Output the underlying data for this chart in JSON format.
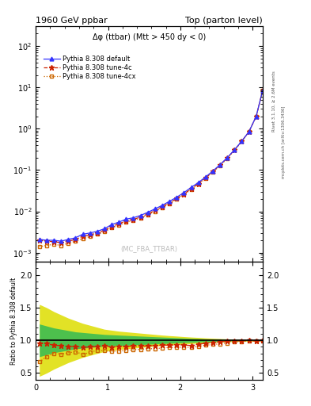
{
  "title_left": "1960 GeV ppbar",
  "title_right": "Top (parton level)",
  "annotation": "Δφ (ttbar) (Mtt > 450 dy < 0)",
  "watermark": "(MC_FBA_TTBAR)",
  "right_label_top": "Rivet 3.1.10, ≥ 2.6M events",
  "right_label_bot": "mcplots.cern.ch [arXiv:1306.3436]",
  "ylabel_ratio": "Ratio to Pythia 8.308 default",
  "xlim": [
    0,
    3.14159
  ],
  "ylim_main": [
    0.0006,
    300
  ],
  "ylim_ratio": [
    0.4,
    2.2
  ],
  "yticks_ratio": [
    0.5,
    1.0,
    1.5,
    2.0
  ],
  "xticks": [
    0,
    1,
    2,
    3
  ],
  "legend_labels": [
    "Pythia 8.308 default",
    "Pythia 8.308 tune-4c",
    "Pythia 8.308 tune-4cx"
  ],
  "x": [
    0.05,
    0.15,
    0.25,
    0.35,
    0.45,
    0.55,
    0.65,
    0.75,
    0.85,
    0.95,
    1.05,
    1.15,
    1.25,
    1.35,
    1.45,
    1.55,
    1.65,
    1.75,
    1.85,
    1.95,
    2.05,
    2.15,
    2.25,
    2.35,
    2.45,
    2.55,
    2.65,
    2.75,
    2.85,
    2.95,
    3.05,
    3.14
  ],
  "y_default": [
    0.0021,
    0.002,
    0.002,
    0.0019,
    0.0021,
    0.0023,
    0.0028,
    0.003,
    0.0033,
    0.0038,
    0.0048,
    0.0055,
    0.0065,
    0.007,
    0.008,
    0.0095,
    0.0115,
    0.014,
    0.0175,
    0.022,
    0.0285,
    0.038,
    0.05,
    0.068,
    0.095,
    0.135,
    0.2,
    0.31,
    0.5,
    0.85,
    2.0,
    8.5
  ],
  "y_tune4c": [
    0.002,
    0.0019,
    0.00185,
    0.00175,
    0.0019,
    0.0021,
    0.0025,
    0.0027,
    0.003,
    0.0035,
    0.0043,
    0.005,
    0.0059,
    0.0064,
    0.0073,
    0.0087,
    0.0106,
    0.013,
    0.0162,
    0.0205,
    0.0265,
    0.035,
    0.047,
    0.065,
    0.092,
    0.132,
    0.197,
    0.307,
    0.498,
    0.848,
    1.98,
    8.48
  ],
  "y_tune4cx": [
    0.0014,
    0.0015,
    0.0016,
    0.0015,
    0.0017,
    0.0019,
    0.0022,
    0.00245,
    0.0028,
    0.0032,
    0.004,
    0.0046,
    0.0055,
    0.006,
    0.0069,
    0.0083,
    0.01,
    0.0124,
    0.0156,
    0.0197,
    0.0255,
    0.034,
    0.0455,
    0.063,
    0.089,
    0.128,
    0.192,
    0.302,
    0.491,
    0.84,
    1.97,
    8.46
  ],
  "ratio_tune4c": [
    0.95,
    0.95,
    0.925,
    0.92,
    0.905,
    0.91,
    0.893,
    0.9,
    0.91,
    0.92,
    0.896,
    0.91,
    0.908,
    0.914,
    0.913,
    0.916,
    0.922,
    0.929,
    0.926,
    0.932,
    0.93,
    0.921,
    0.94,
    0.956,
    0.968,
    0.978,
    0.985,
    0.99,
    0.996,
    0.998,
    0.99,
    0.998
  ],
  "ratio_tune4cx": [
    0.67,
    0.75,
    0.8,
    0.79,
    0.81,
    0.826,
    0.786,
    0.817,
    0.848,
    0.842,
    0.833,
    0.836,
    0.846,
    0.857,
    0.863,
    0.874,
    0.87,
    0.886,
    0.891,
    0.895,
    0.895,
    0.895,
    0.91,
    0.926,
    0.937,
    0.948,
    0.96,
    0.974,
    0.982,
    0.988,
    0.985,
    0.995
  ],
  "band_green_upper": [
    1.25,
    1.22,
    1.19,
    1.17,
    1.15,
    1.13,
    1.12,
    1.11,
    1.1,
    1.09,
    1.085,
    1.08,
    1.075,
    1.07,
    1.065,
    1.06,
    1.055,
    1.05,
    1.045,
    1.04,
    1.035,
    1.03,
    1.026,
    1.022,
    1.018,
    1.015,
    1.012,
    1.01,
    1.008,
    1.006,
    1.005,
    1.004
  ],
  "band_green_lower": [
    0.75,
    0.78,
    0.81,
    0.83,
    0.85,
    0.87,
    0.88,
    0.89,
    0.9,
    0.91,
    0.915,
    0.92,
    0.925,
    0.93,
    0.935,
    0.94,
    0.945,
    0.95,
    0.955,
    0.96,
    0.965,
    0.97,
    0.974,
    0.978,
    0.982,
    0.985,
    0.988,
    0.99,
    0.992,
    0.994,
    0.995,
    0.996
  ],
  "band_yellow_upper": [
    1.55,
    1.5,
    1.44,
    1.39,
    1.34,
    1.3,
    1.26,
    1.23,
    1.2,
    1.17,
    1.155,
    1.14,
    1.13,
    1.12,
    1.11,
    1.1,
    1.09,
    1.08,
    1.072,
    1.065,
    1.057,
    1.05,
    1.044,
    1.037,
    1.032,
    1.027,
    1.022,
    1.018,
    1.015,
    1.012,
    1.01,
    1.008
  ],
  "band_yellow_lower": [
    0.45,
    0.5,
    0.56,
    0.61,
    0.66,
    0.7,
    0.74,
    0.77,
    0.8,
    0.83,
    0.845,
    0.86,
    0.87,
    0.88,
    0.89,
    0.9,
    0.91,
    0.92,
    0.928,
    0.935,
    0.943,
    0.95,
    0.956,
    0.963,
    0.968,
    0.973,
    0.978,
    0.982,
    0.985,
    0.988,
    0.99,
    0.992
  ],
  "color_default": "#3333ff",
  "color_tune4c": "#cc2200",
  "color_tune4cx": "#cc6600",
  "color_green_band": "#33bb55",
  "color_yellow_band": "#dddd00"
}
